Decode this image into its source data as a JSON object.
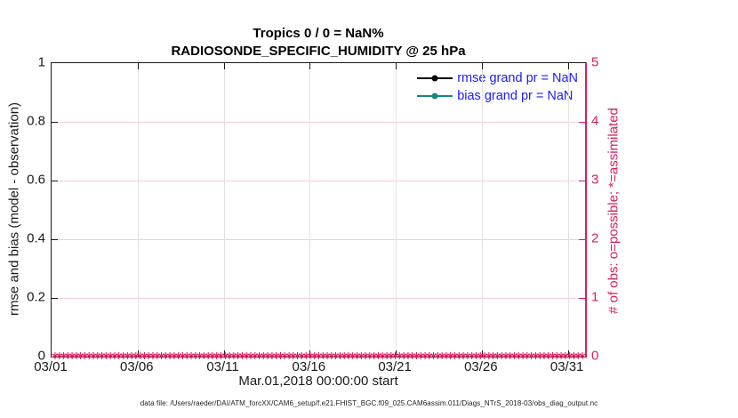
{
  "title": {
    "line1": "Tropics 0 / 0 = NaN%",
    "line2": "RADIOSONDE_SPECIFIC_HUMIDITY @ 25 hPa"
  },
  "axes": {
    "left": {
      "label": "rmse and bias (model - observation)"
    },
    "right": {
      "label": "# of obs: o=possible; *=assimilated"
    },
    "x": {
      "label": "Mar.01,2018 00:00:00 start"
    }
  },
  "legend": [
    {
      "label": "rmse grand pr = NaN",
      "color": "#000000"
    },
    {
      "label": "bias grand pr = NaN",
      "color": "#17877D"
    }
  ],
  "footer": "data file: /Users/raeder/DAI/ATM_forcXX/CAM6_setup/f.e21.FHIST_BGC.f09_025.CAM6assim.011/Diags_NTrS_2018-03/obs_diag_output.nc",
  "colors": {
    "crimson": "#D81E5B",
    "pink_grid": "#F4CCD9",
    "gray_grid": "#E2E2E2",
    "legend_blue": "#1A1AFF",
    "teal": "#17877D",
    "ink": "#1a1a1a"
  },
  "chart_data": {
    "type": "line",
    "title": "Tropics 0 / 0 = NaN%",
    "subtitle": "RADIOSONDE_SPECIFIC_HUMIDITY @ 25 hPa",
    "xlabel": "Mar.01,2018 00:00:00 start",
    "ylabel_left": "rmse and bias (model - observation)",
    "ylabel_right": "# of obs: o=possible; *=assimilated",
    "x_range_days": [
      0,
      31
    ],
    "x_tick_days": [
      0,
      5,
      10,
      15,
      20,
      25,
      30
    ],
    "x_tick_labels": [
      "03/01",
      "03/06",
      "03/11",
      "03/16",
      "03/21",
      "03/26",
      "03/31"
    ],
    "ylim_left": [
      0,
      1
    ],
    "y_ticks_left": [
      0,
      0.2,
      0.4,
      0.6,
      0.8,
      1
    ],
    "y_tick_labels_left": [
      "0",
      "0.2",
      "0.4",
      "0.6",
      "0.8",
      "1"
    ],
    "ylim_right": [
      0,
      5
    ],
    "y_ticks_right": [
      0,
      1,
      2,
      3,
      4,
      5
    ],
    "y_tick_labels_right": [
      "0",
      "1",
      "2",
      "3",
      "4",
      "5"
    ],
    "grid": true,
    "legend_position": "upper-right-inside",
    "series": [
      {
        "name": "rmse grand pr = NaN",
        "color": "#000000",
        "marker": "filled-circle",
        "values": null,
        "note": "all values NaN - no curve drawn"
      },
      {
        "name": "bias grand pr = NaN",
        "color": "#17877D",
        "marker": "filled-circle",
        "values": null,
        "note": "all values NaN - no curve drawn"
      }
    ],
    "obs_count": {
      "marker": "*",
      "color": "#D81E5B",
      "n_bins": 125,
      "value_all_bins": 0,
      "note": "dense row of * markers along y=0 spanning the full x range (right axis scale)"
    }
  }
}
